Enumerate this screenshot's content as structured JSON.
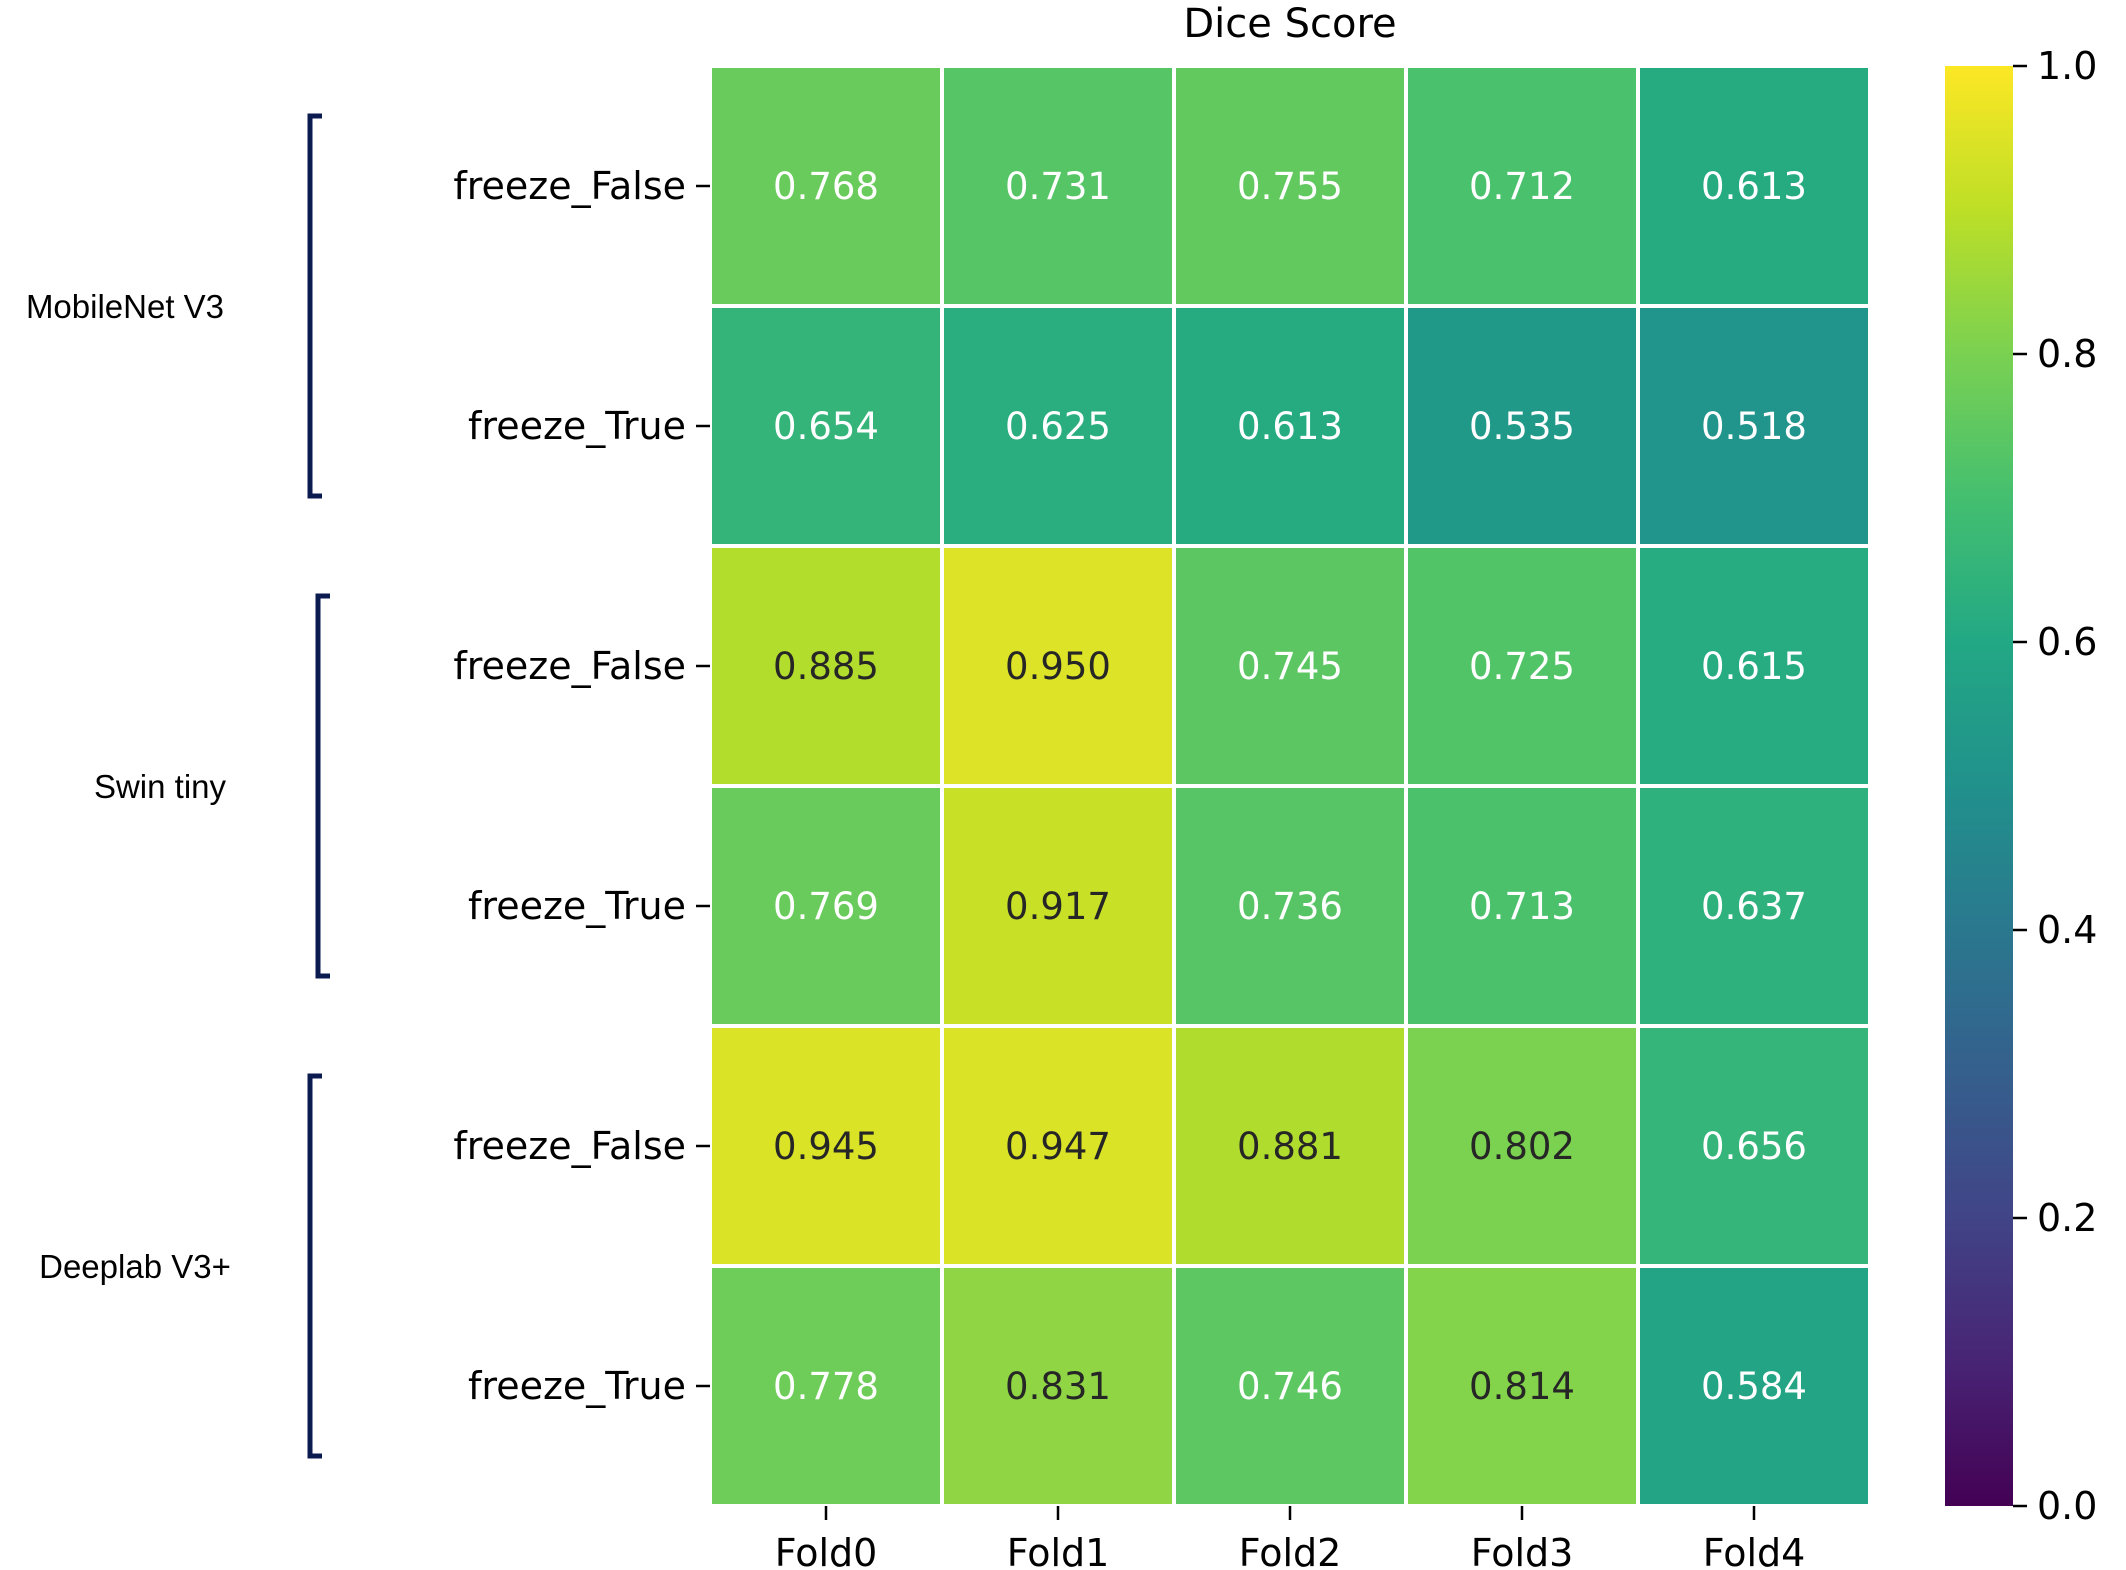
{
  "chart_data": {
    "type": "heatmap",
    "title": "Dice Score",
    "columns": [
      "Fold0",
      "Fold1",
      "Fold2",
      "Fold3",
      "Fold4"
    ],
    "rows": [
      {
        "group": "MobileNet V3",
        "label": "freeze_False",
        "values": [
          0.768,
          0.731,
          0.755,
          0.712,
          0.613
        ]
      },
      {
        "group": "MobileNet V3",
        "label": "freeze_True",
        "values": [
          0.654,
          0.625,
          0.613,
          0.535,
          0.518
        ]
      },
      {
        "group": "Swin tiny",
        "label": "freeze_False",
        "values": [
          0.885,
          0.95,
          0.745,
          0.725,
          0.615
        ]
      },
      {
        "group": "Swin tiny",
        "label": "freeze_True",
        "values": [
          0.769,
          0.917,
          0.736,
          0.713,
          0.637
        ]
      },
      {
        "group": "Deeplab V3+",
        "label": "freeze_False",
        "values": [
          0.945,
          0.947,
          0.881,
          0.802,
          0.656
        ]
      },
      {
        "group": "Deeplab V3+",
        "label": "freeze_True",
        "values": [
          0.778,
          0.831,
          0.746,
          0.814,
          0.584
        ]
      }
    ],
    "groups": [
      {
        "name": "MobileNet V3",
        "row_start": 0,
        "row_end": 1
      },
      {
        "name": "Swin tiny",
        "row_start": 2,
        "row_end": 3
      },
      {
        "name": "Deeplab V3+",
        "row_start": 4,
        "row_end": 5
      }
    ],
    "value_format_decimals": 3,
    "colorscale": "viridis",
    "vmin": 0.0,
    "vmax": 1.0,
    "colorbar_ticks": [
      "0.0",
      "0.2",
      "0.4",
      "0.6",
      "0.8",
      "1.0"
    ],
    "colorbar_placement": "right",
    "bracket_color": "#0b1a4f"
  }
}
